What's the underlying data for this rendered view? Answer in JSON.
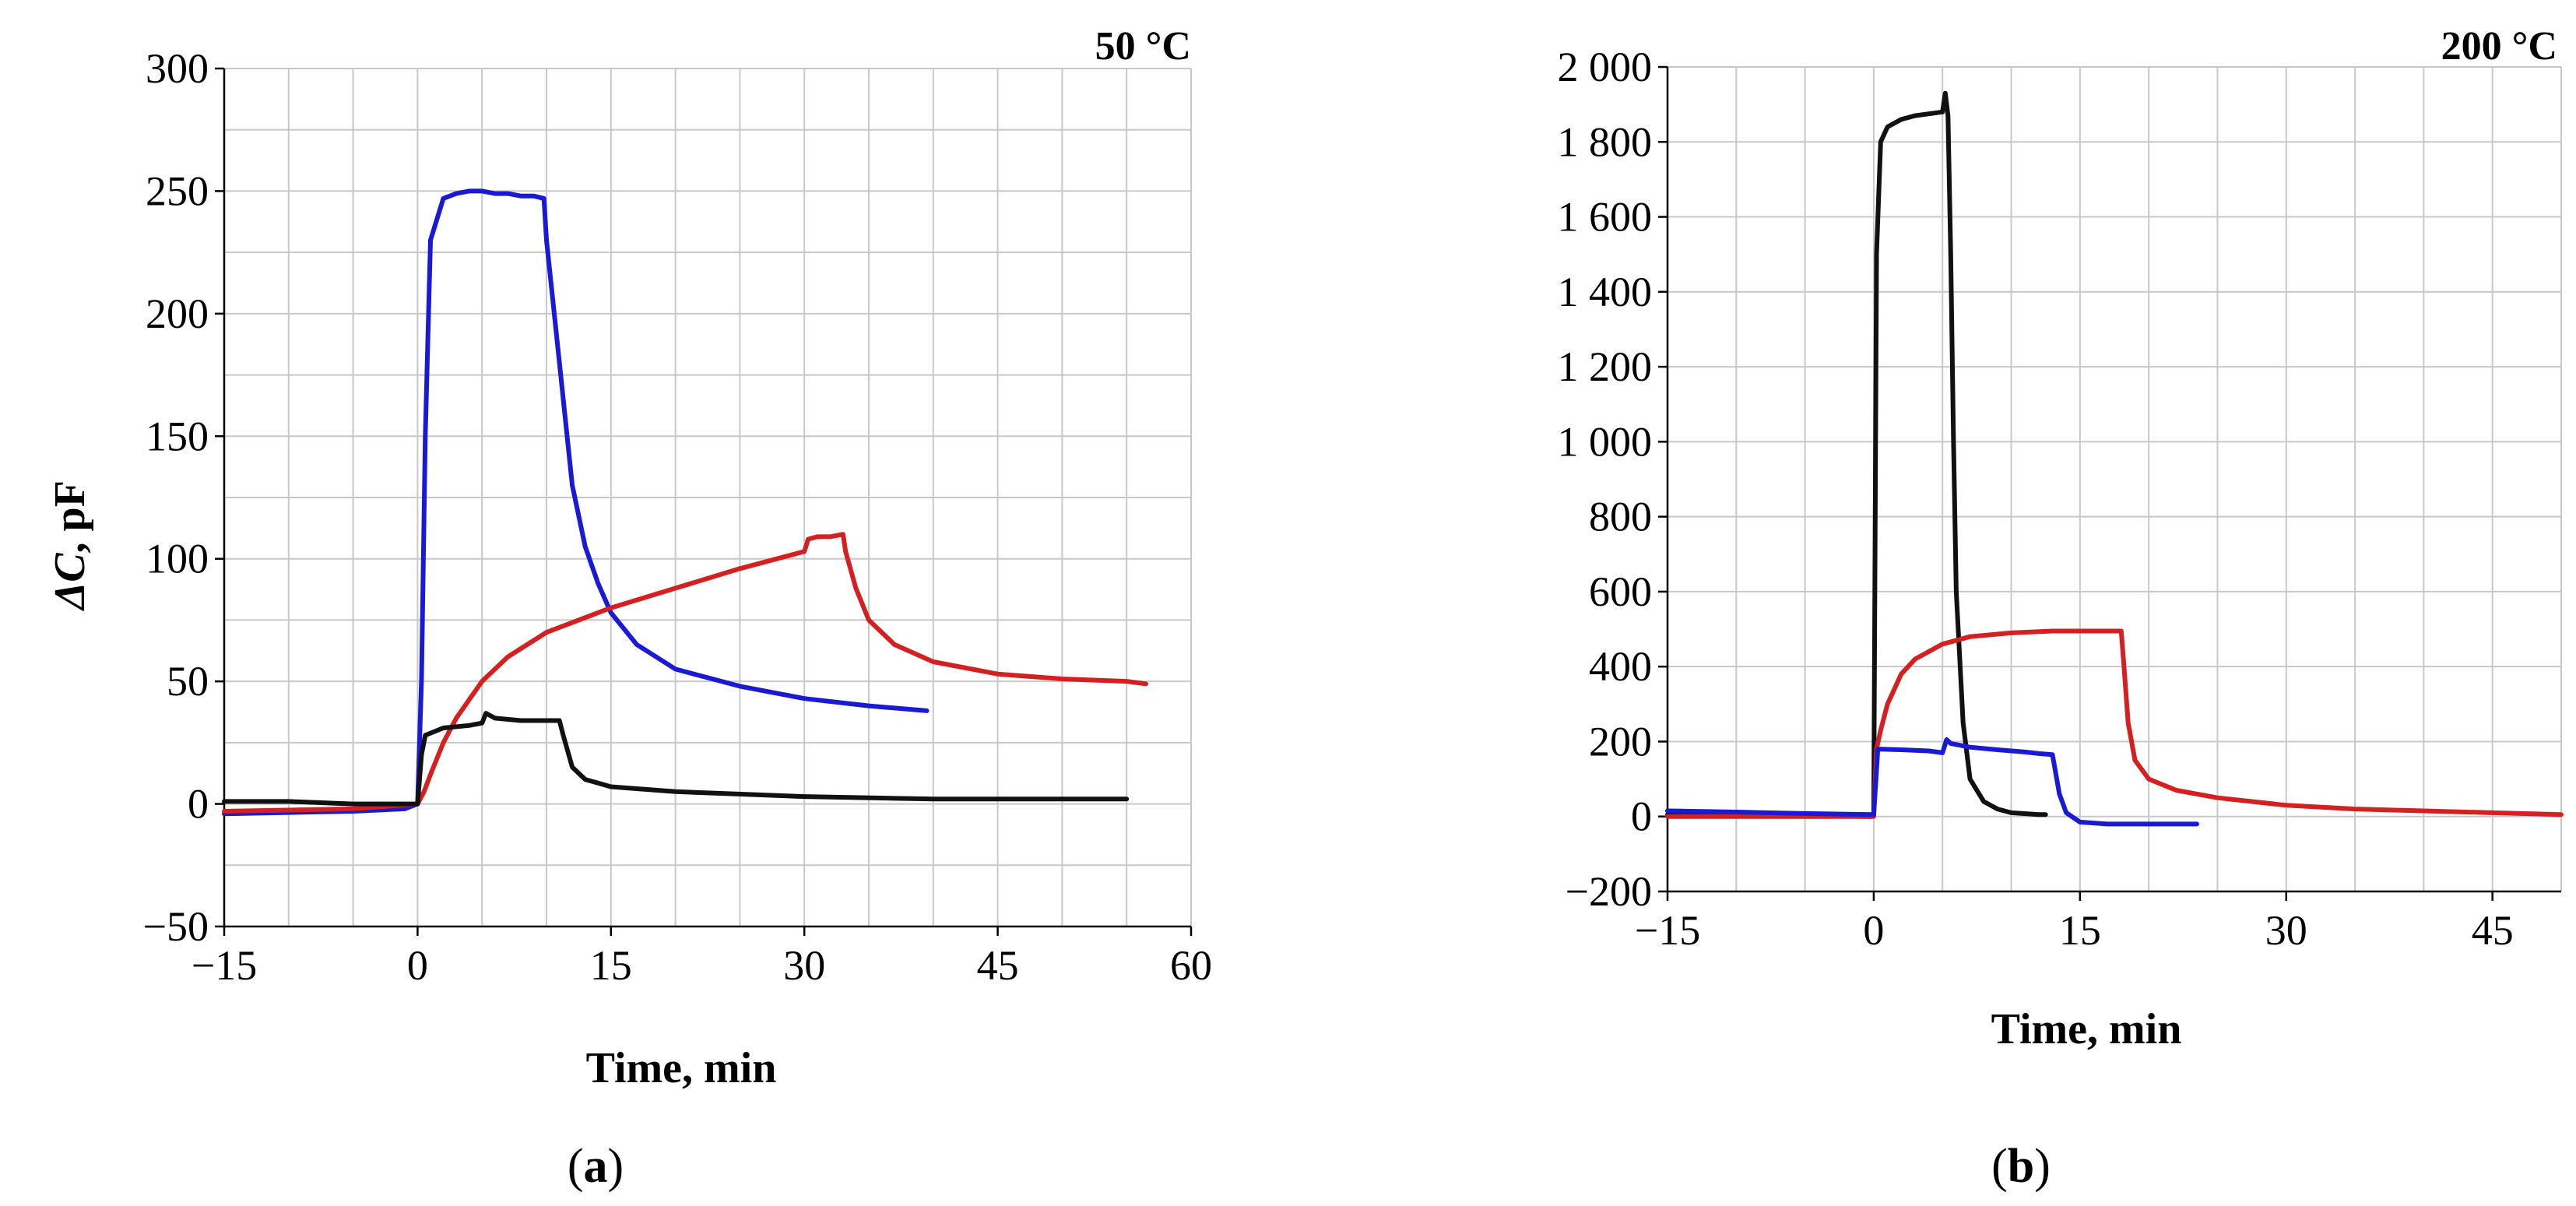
{
  "chart_data": [
    {
      "type": "line",
      "title": "50 °C",
      "caption": "(a)",
      "caption_letter": "a",
      "xlabel": "Time, min",
      "ylabel": "ΔC, pF",
      "ylabel_symbol": "ΔC",
      "ylabel_unit": ", pF",
      "xlim": [
        -15,
        60
      ],
      "ylim": [
        -50,
        300
      ],
      "xticks": [
        -15,
        0,
        15,
        30,
        45,
        60
      ],
      "xtick_labels": [
        "−15",
        "0",
        "15",
        "30",
        "45",
        "60"
      ],
      "yticks": [
        -50,
        0,
        50,
        100,
        150,
        200,
        250,
        300
      ],
      "ytick_labels": [
        "−50",
        "0",
        "50",
        "100",
        "150",
        "200",
        "250",
        "300"
      ],
      "x_grid_step": 5,
      "y_grid_step": 25,
      "grid": true,
      "series": [
        {
          "name": "blue",
          "color": "#1a1ad6",
          "x": [
            -15,
            -10,
            -5,
            -1,
            0,
            0.3,
            0.6,
            1,
            2,
            3,
            4,
            5,
            6,
            7,
            8,
            9,
            9.8,
            10,
            11,
            12,
            13,
            14,
            15,
            17,
            20,
            25,
            30,
            35,
            39.5
          ],
          "y": [
            -4,
            -3.5,
            -3,
            -2,
            0,
            50,
            150,
            230,
            247,
            249,
            250,
            250,
            249,
            249,
            248,
            248,
            247,
            230,
            180,
            130,
            105,
            90,
            78,
            65,
            55,
            48,
            43,
            40,
            38
          ]
        },
        {
          "name": "red",
          "color": "#d42020",
          "x": [
            -15,
            -5,
            0,
            0.5,
            1,
            2,
            3,
            5,
            7,
            10,
            15,
            20,
            25,
            30,
            30.3,
            31,
            32,
            33,
            33.2,
            34,
            35,
            37,
            40,
            45,
            50,
            55,
            56.5
          ],
          "y": [
            -3,
            -2,
            0,
            5,
            12,
            25,
            35,
            50,
            60,
            70,
            80,
            88,
            96,
            103,
            108,
            109,
            109,
            110,
            103,
            88,
            75,
            65,
            58,
            53,
            51,
            50,
            49
          ]
        },
        {
          "name": "black",
          "color": "#111111",
          "x": [
            -15,
            -10,
            -5,
            -1,
            0,
            0.3,
            0.6,
            2,
            4,
            5,
            5.3,
            6,
            8,
            10,
            11,
            11.3,
            12,
            13,
            15,
            20,
            30,
            40,
            50,
            55
          ],
          "y": [
            1,
            1,
            0,
            0,
            0,
            20,
            28,
            31,
            32,
            33,
            37,
            35,
            34,
            34,
            34,
            28,
            15,
            10,
            7,
            5,
            3,
            2,
            2,
            2
          ]
        }
      ]
    },
    {
      "type": "line",
      "title": "200 °C",
      "caption": "(b)",
      "caption_letter": "b",
      "xlabel": "Time, min",
      "ylabel": "",
      "xlim": [
        -15,
        50
      ],
      "ylim": [
        -200,
        2000
      ],
      "xticks": [
        -15,
        0,
        15,
        30,
        45
      ],
      "xtick_labels": [
        "−15",
        "0",
        "15",
        "30",
        "45"
      ],
      "yticks": [
        -200,
        0,
        200,
        400,
        600,
        800,
        1000,
        1200,
        1400,
        1600,
        1800,
        2000
      ],
      "ytick_labels": [
        "−200",
        "0",
        "200",
        "400",
        "600",
        "800",
        "1 000",
        "1 200",
        "1 400",
        "1 600",
        "1 800",
        "2 000"
      ],
      "x_grid_step": 5,
      "y_grid_step": 200,
      "grid": true,
      "series": [
        {
          "name": "black",
          "color": "#111111",
          "x": [
            -15,
            -10,
            -5,
            -0.2,
            0,
            0.2,
            0.5,
            1,
            2,
            3,
            4,
            5,
            5.2,
            5.4,
            5.6,
            5.8,
            6,
            6.5,
            7,
            8,
            9,
            10,
            12,
            12.5
          ],
          "y": [
            5,
            3,
            2,
            0,
            10,
            1500,
            1800,
            1840,
            1860,
            1870,
            1875,
            1880,
            1930,
            1870,
            1500,
            1000,
            600,
            250,
            100,
            40,
            20,
            10,
            5,
            5
          ]
        },
        {
          "name": "red",
          "color": "#d42020",
          "x": [
            -15,
            -10,
            -5,
            0,
            0.2,
            0.5,
            1,
            2,
            3,
            5,
            7,
            10,
            13,
            15,
            17,
            18,
            18.2,
            18.5,
            19,
            20,
            22,
            25,
            30,
            35,
            40,
            45,
            50
          ],
          "y": [
            0,
            0,
            0,
            0,
            180,
            230,
            300,
            380,
            420,
            460,
            480,
            490,
            495,
            495,
            495,
            495,
            400,
            250,
            150,
            100,
            70,
            50,
            30,
            20,
            15,
            10,
            5
          ]
        },
        {
          "name": "blue",
          "color": "#1a1ad6",
          "x": [
            -15,
            -10,
            -5,
            -0.2,
            0,
            0.3,
            2,
            4,
            5,
            5.3,
            5.6,
            7,
            9,
            11,
            12,
            13,
            13.5,
            14,
            15,
            17,
            20,
            23.5
          ],
          "y": [
            15,
            12,
            8,
            5,
            5,
            180,
            178,
            175,
            170,
            205,
            195,
            185,
            178,
            172,
            168,
            165,
            60,
            10,
            -15,
            -20,
            -20,
            -20
          ]
        }
      ]
    }
  ]
}
